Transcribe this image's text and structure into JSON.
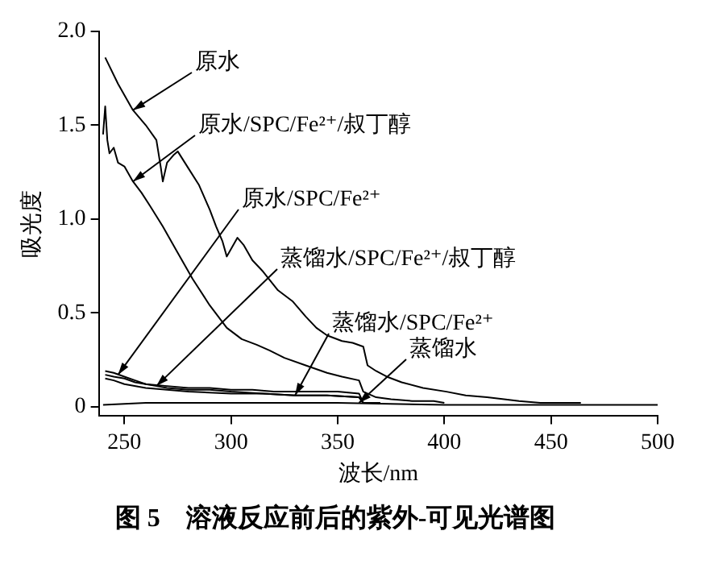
{
  "chart_data": {
    "type": "line",
    "title": "图 5　溶液反应前后的紫外-可见光谱图",
    "xlabel": "波长/nm",
    "ylabel": "吸光度",
    "xlim": [
      238,
      500
    ],
    "ylim": [
      -0.05,
      2.0
    ],
    "xticks": [
      250,
      300,
      350,
      400,
      450,
      500
    ],
    "yticks": [
      0,
      {
        "value": 0.5,
        "label": "0.5"
      },
      {
        "value": 1,
        "label": "1.0"
      },
      {
        "value": 1.5,
        "label": "1.5"
      },
      {
        "value": 2,
        "label": "2.0"
      }
    ],
    "annotations": [
      {
        "text": "原水",
        "x": 254,
        "y": 1.58
      },
      {
        "text": "原水/SPC/Fe²⁺/叔丁醇",
        "x": 254,
        "y": 1.2
      },
      {
        "text": "原水/SPC/Fe²⁺",
        "x": 247,
        "y": 0.17
      },
      {
        "text": "蒸馏水/SPC/Fe²⁺/叔丁醇",
        "x": 265,
        "y": 0.11
      },
      {
        "text": "蒸馏水/SPC/Fe²⁺",
        "x": 330,
        "y": 0.06
      },
      {
        "text": "蒸馏水",
        "x": 360,
        "y": 0.02
      }
    ],
    "grid": false,
    "legend": false,
    "marker": "none",
    "line_style": "solid",
    "series": [
      {
        "color": "#000000",
        "x": [
          241,
          247,
          254,
          260,
          265,
          267,
          268,
          270,
          273,
          275,
          280,
          285,
          290,
          293,
          296,
          298,
          300,
          303,
          306,
          310,
          315,
          322,
          329,
          335,
          340,
          345,
          352,
          357,
          362,
          364,
          368,
          373,
          380,
          390,
          401,
          410,
          420,
          428,
          435,
          445,
          455,
          464
        ],
        "values": [
          1.86,
          1.72,
          1.58,
          1.5,
          1.42,
          1.28,
          1.2,
          1.3,
          1.34,
          1.36,
          1.27,
          1.18,
          1.05,
          0.96,
          0.88,
          0.8,
          0.84,
          0.9,
          0.86,
          0.78,
          0.72,
          0.62,
          0.56,
          0.48,
          0.42,
          0.38,
          0.35,
          0.34,
          0.32,
          0.22,
          0.19,
          0.16,
          0.13,
          0.1,
          0.08,
          0.06,
          0.05,
          0.04,
          0.03,
          0.02,
          0.02,
          0.02
        ]
      },
      {
        "color": "#000000",
        "x": [
          240,
          241,
          242,
          243,
          245,
          247,
          250,
          254,
          258,
          262,
          268,
          275,
          282,
          290,
          298,
          305,
          312,
          318,
          325,
          335,
          345,
          352,
          360,
          362,
          368,
          375,
          385,
          395,
          400
        ],
        "values": [
          1.45,
          1.6,
          1.42,
          1.35,
          1.38,
          1.3,
          1.28,
          1.2,
          1.14,
          1.07,
          0.96,
          0.82,
          0.68,
          0.54,
          0.42,
          0.36,
          0.33,
          0.3,
          0.26,
          0.22,
          0.18,
          0.16,
          0.14,
          0.08,
          0.05,
          0.04,
          0.03,
          0.03,
          0.02
        ]
      },
      {
        "color": "#000000",
        "x": [
          241,
          245,
          250,
          255,
          260,
          270,
          280,
          290,
          300,
          310,
          320,
          330,
          340,
          350,
          360,
          362,
          370
        ],
        "values": [
          0.19,
          0.18,
          0.16,
          0.14,
          0.12,
          0.11,
          0.1,
          0.1,
          0.09,
          0.09,
          0.08,
          0.08,
          0.08,
          0.08,
          0.07,
          0.02,
          0.02
        ]
      },
      {
        "color": "#000000",
        "x": [
          241,
          245,
          250,
          255,
          260,
          265,
          270,
          280,
          290,
          300,
          315,
          330,
          345,
          360,
          362
        ],
        "values": [
          0.17,
          0.16,
          0.15,
          0.13,
          0.12,
          0.11,
          0.1,
          0.09,
          0.09,
          0.08,
          0.07,
          0.06,
          0.06,
          0.05,
          0.02
        ]
      },
      {
        "color": "#000000",
        "x": [
          241,
          245,
          250,
          260,
          270,
          280,
          300,
          315,
          330,
          345,
          360,
          362
        ],
        "values": [
          0.15,
          0.14,
          0.12,
          0.1,
          0.09,
          0.08,
          0.07,
          0.07,
          0.06,
          0.06,
          0.05,
          0.02
        ]
      },
      {
        "color": "#000000",
        "x": [
          240,
          260,
          270,
          300,
          350,
          400,
          450,
          500
        ],
        "values": [
          0.01,
          0.02,
          0.02,
          0.02,
          0.02,
          0.01,
          0.01,
          0.01
        ]
      }
    ]
  }
}
